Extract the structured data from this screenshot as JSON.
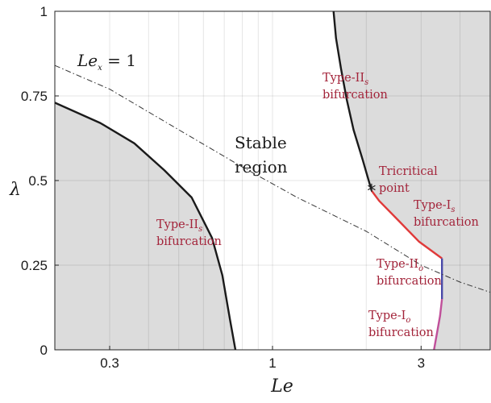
{
  "chart_data": {
    "type": "line",
    "xlabel": "Le",
    "ylabel": "λ",
    "xscale": "log",
    "xlim": [
      0.2,
      5
    ],
    "ylim": [
      0,
      1
    ],
    "x_ticks": [
      {
        "value": 0.3,
        "label": "0.3"
      },
      {
        "value": 1,
        "label": "1"
      },
      {
        "value": 3,
        "label": "3"
      }
    ],
    "y_ticks": [
      {
        "value": 0,
        "label": "0"
      },
      {
        "value": 0.25,
        "label": "0.25"
      },
      {
        "value": 0.5,
        "label": "0.5"
      },
      {
        "value": 0.75,
        "label": "0.75"
      },
      {
        "value": 1,
        "label": "1"
      }
    ],
    "grid": true,
    "regions": [
      {
        "name": "left-unstable",
        "fill": "#dcdcdc",
        "boundary": [
          [
            0.2,
            0.73
          ],
          [
            0.28,
            0.67
          ],
          [
            0.36,
            0.61
          ],
          [
            0.45,
            0.53
          ],
          [
            0.55,
            0.45
          ],
          [
            0.64,
            0.33
          ],
          [
            0.69,
            0.22
          ],
          [
            0.73,
            0.09
          ],
          [
            0.76,
            0
          ]
        ]
      },
      {
        "name": "right-unstable",
        "fill": "#dcdcdc",
        "boundary": [
          [
            1.57,
            1
          ],
          [
            1.6,
            0.92
          ],
          [
            1.66,
            0.83
          ],
          [
            1.73,
            0.74
          ],
          [
            1.82,
            0.65
          ],
          [
            1.95,
            0.56
          ],
          [
            2.08,
            0.47
          ],
          [
            2.2,
            0.44
          ],
          [
            2.55,
            0.38
          ],
          [
            2.95,
            0.32
          ],
          [
            3.5,
            0.27
          ],
          [
            3.5,
            0.15
          ],
          [
            3.45,
            0.1
          ],
          [
            3.3,
            0
          ]
        ]
      }
    ],
    "series": [
      {
        "name": "Type-IIs",
        "color": "#1a1a1a",
        "points": [
          [
            0.2,
            0.73
          ],
          [
            0.28,
            0.67
          ],
          [
            0.36,
            0.61
          ],
          [
            0.45,
            0.53
          ],
          [
            0.55,
            0.45
          ],
          [
            0.64,
            0.33
          ],
          [
            0.69,
            0.22
          ],
          [
            0.73,
            0.09
          ],
          [
            0.76,
            0
          ]
        ]
      },
      {
        "name": "Type-IIs",
        "color": "#1a1a1a",
        "points": [
          [
            1.57,
            1
          ],
          [
            1.6,
            0.92
          ],
          [
            1.66,
            0.83
          ],
          [
            1.73,
            0.74
          ],
          [
            1.82,
            0.65
          ],
          [
            1.95,
            0.56
          ],
          [
            2.08,
            0.47
          ]
        ]
      },
      {
        "name": "Type-Is",
        "color": "#e03a3a",
        "points": [
          [
            2.08,
            0.47
          ],
          [
            2.2,
            0.44
          ],
          [
            2.55,
            0.38
          ],
          [
            2.95,
            0.32
          ],
          [
            3.5,
            0.27
          ]
        ]
      },
      {
        "name": "Type-IIo",
        "color": "#4a4aa8",
        "points": [
          [
            3.5,
            0.27
          ],
          [
            3.5,
            0.15
          ]
        ]
      },
      {
        "name": "Type-Io",
        "color": "#c0509a",
        "points": [
          [
            3.5,
            0.15
          ],
          [
            3.45,
            0.1
          ],
          [
            3.3,
            0
          ]
        ]
      },
      {
        "name": "Lex = 1",
        "color": "#333333",
        "dash": true,
        "points": [
          [
            0.2,
            0.84
          ],
          [
            0.3,
            0.77
          ],
          [
            0.5,
            0.65
          ],
          [
            0.8,
            0.54
          ],
          [
            1.2,
            0.45
          ],
          [
            2,
            0.35
          ],
          [
            3,
            0.25
          ],
          [
            4,
            0.2
          ],
          [
            5,
            0.17
          ]
        ]
      }
    ],
    "annotations": {
      "lex_label": {
        "main": "Le",
        "sub": "x",
        "rest": " = 1"
      },
      "stable": [
        "Stable",
        "region"
      ],
      "tricritical": {
        "lines": [
          "Tricritical",
          "point"
        ],
        "marker": "*",
        "at": [
          2.08,
          0.47
        ]
      },
      "type_iis_top": {
        "main": "Type-II",
        "sub": "s",
        "line2": "bifurcation"
      },
      "type_iis_left": {
        "main": "Type-II",
        "sub": "s",
        "line2": "bifurcation"
      },
      "type_is": {
        "main": "Type-I",
        "sub": "s",
        "line2": "bifurcation"
      },
      "type_iio": {
        "main": "Type-II",
        "sub": "o",
        "line2": "bifurcation"
      },
      "type_io": {
        "main": "Type-I",
        "sub": "o",
        "line2": "bifurcation"
      }
    }
  }
}
